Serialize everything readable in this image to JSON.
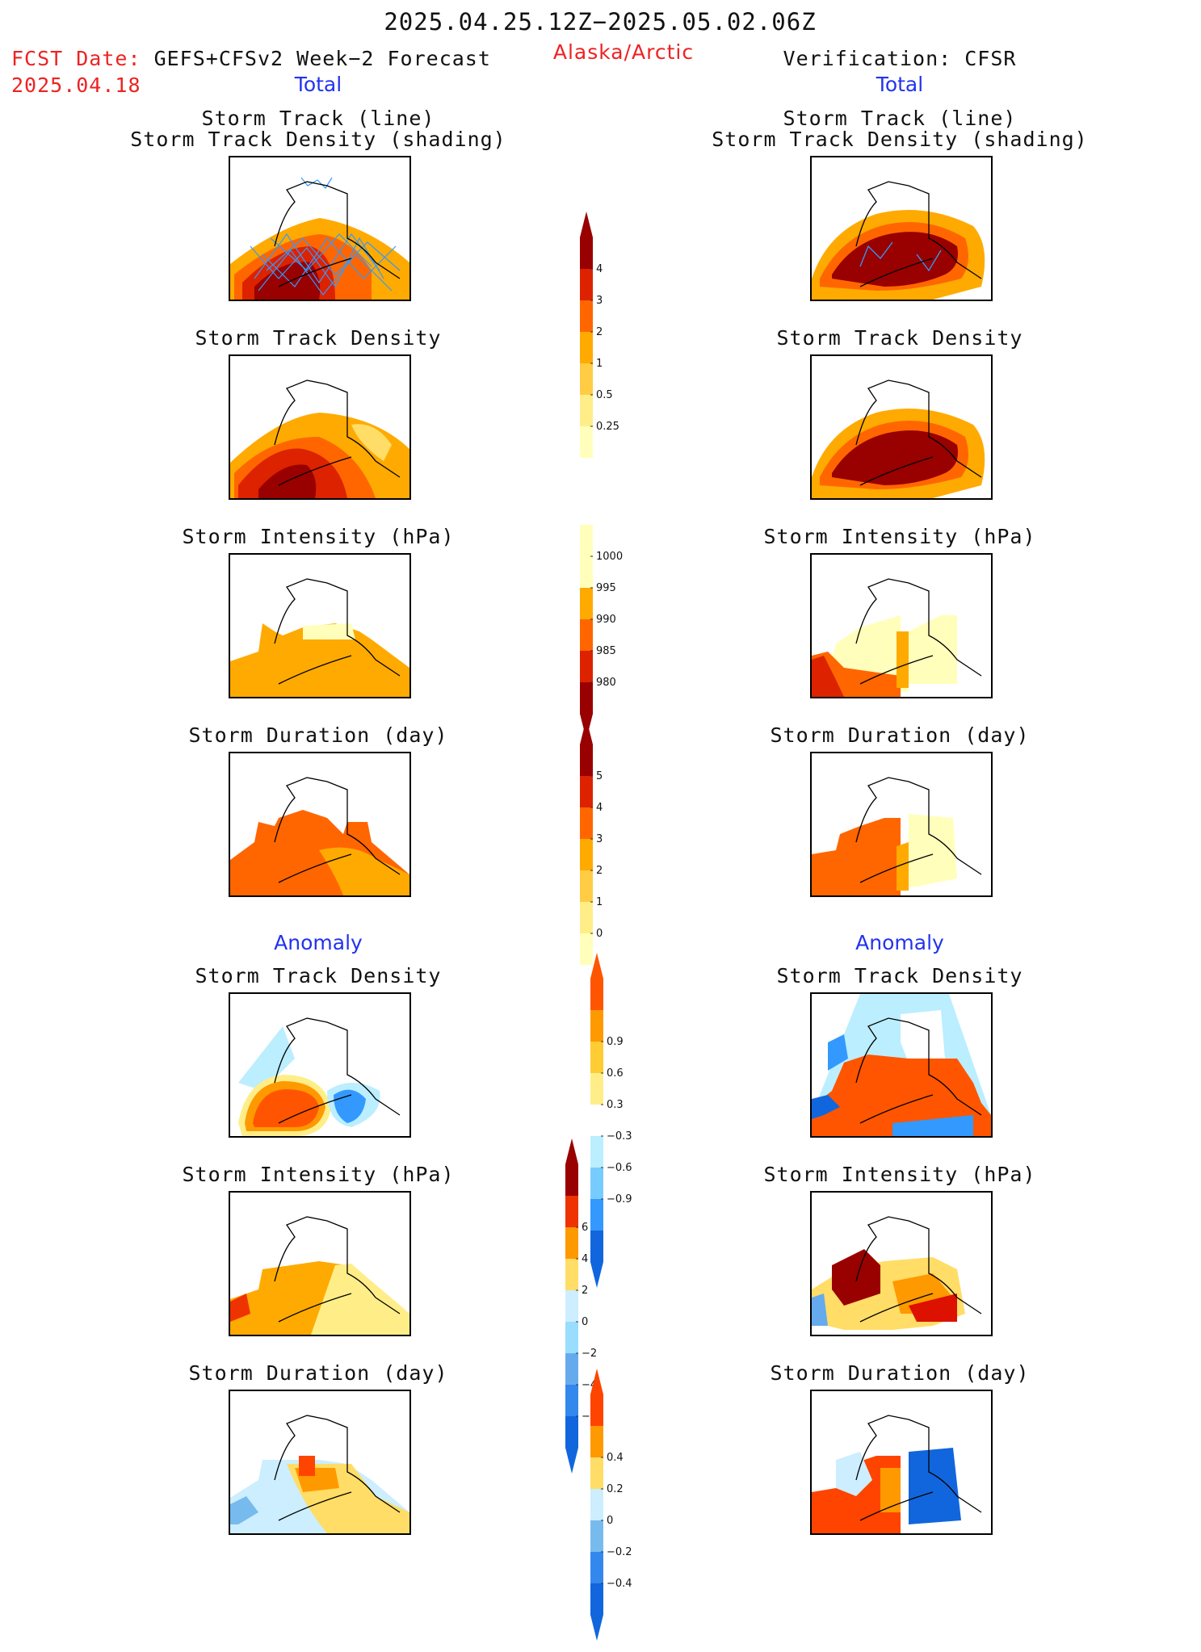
{
  "header": {
    "period": "2025.04.25.12Z−2025.05.02.06Z",
    "region": "Alaska/Arctic",
    "fcst_label": "FCST Date:",
    "fcst_model": "GEFS+CFSv2 Week−2 Forecast",
    "fcst_date": "2025.04.18",
    "verification": "Verification: CFSR",
    "total_left": "Total",
    "total_right": "Total",
    "anomaly_left": "Anomaly",
    "anomaly_right": "Anomaly"
  },
  "panel_titles": {
    "track_line": "Storm Track (line)",
    "track_shading": "Storm Track Density (shading)",
    "density": "Storm Track Density",
    "intensity": "Storm Intensity (hPa)",
    "duration": "Storm Duration (day)"
  },
  "colors": {
    "density_scale": [
      "#ffffaa",
      "#ffdd66",
      "#ffaa00",
      "#ff6600",
      "#dd2200",
      "#990000"
    ],
    "intensity_scale": [
      "#ffffaa",
      "#ffaa00",
      "#ff6600",
      "#dd2200",
      "#990000"
    ],
    "anomaly_warm": [
      "#ffee88",
      "#ffaa00",
      "#ff5500",
      "#dd1100",
      "#990000"
    ],
    "anomaly_cold": [
      "#bbeeff",
      "#77ccff",
      "#3399ff",
      "#1166dd"
    ],
    "track_line": "#3399ff"
  },
  "chart_data": [
    {
      "type": "heatmap",
      "title": "Storm Track (line) / Storm Track Density (shading)",
      "column": "GEFS+CFSv2 Week-2 Forecast",
      "section": "Total",
      "scale_ticks": [
        4,
        3,
        2,
        1,
        0.5,
        0.25
      ],
      "max_class": 5
    },
    {
      "type": "heatmap",
      "title": "Storm Track (line) / Storm Track Density (shading)",
      "column": "Verification: CFSR",
      "section": "Total",
      "scale_ticks": [
        4,
        3,
        2,
        1,
        0.5,
        0.25
      ],
      "max_class": 5
    },
    {
      "type": "heatmap",
      "title": "Storm Track Density",
      "column": "GEFS+CFSv2 Week-2 Forecast",
      "section": "Total",
      "scale_ticks": [
        4,
        3,
        2,
        1,
        0.5,
        0.25
      ]
    },
    {
      "type": "heatmap",
      "title": "Storm Track Density",
      "column": "Verification: CFSR",
      "section": "Total",
      "scale_ticks": [
        4,
        3,
        2,
        1,
        0.5,
        0.25
      ]
    },
    {
      "type": "heatmap",
      "title": "Storm Intensity (hPa)",
      "column": "GEFS+CFSv2 Week-2 Forecast",
      "section": "Total",
      "scale_ticks": [
        1000,
        995,
        990,
        985,
        980
      ]
    },
    {
      "type": "heatmap",
      "title": "Storm Intensity (hPa)",
      "column": "Verification: CFSR",
      "section": "Total",
      "scale_ticks": [
        1000,
        995,
        990,
        985,
        980
      ]
    },
    {
      "type": "heatmap",
      "title": "Storm Duration (day)",
      "column": "GEFS+CFSv2 Week-2 Forecast",
      "section": "Total",
      "scale_ticks": [
        5,
        4,
        3,
        2,
        1,
        0
      ]
    },
    {
      "type": "heatmap",
      "title": "Storm Duration (day)",
      "column": "Verification: CFSR",
      "section": "Total",
      "scale_ticks": [
        5,
        4,
        3,
        2,
        1,
        0
      ]
    },
    {
      "type": "heatmap",
      "title": "Storm Track Density",
      "column": "GEFS+CFSv2 Week-2 Forecast",
      "section": "Anomaly",
      "scale_ticks": [
        0.9,
        0.6,
        0.3,
        -0.3,
        -0.6,
        -0.9
      ]
    },
    {
      "type": "heatmap",
      "title": "Storm Track Density",
      "column": "Verification: CFSR",
      "section": "Anomaly",
      "scale_ticks": [
        0.9,
        0.6,
        0.3,
        -0.3,
        -0.6,
        -0.9
      ]
    },
    {
      "type": "heatmap",
      "title": "Storm Intensity (hPa)",
      "column": "GEFS+CFSv2 Week-2 Forecast",
      "section": "Anomaly",
      "scale_ticks": [
        6,
        4,
        2,
        0,
        -2,
        -4,
        -6
      ]
    },
    {
      "type": "heatmap",
      "title": "Storm Intensity (hPa)",
      "column": "Verification: CFSR",
      "section": "Anomaly",
      "scale_ticks": [
        6,
        4,
        2,
        0,
        -2,
        -4,
        -6
      ]
    },
    {
      "type": "heatmap",
      "title": "Storm Duration (day)",
      "column": "GEFS+CFSv2 Week-2 Forecast",
      "section": "Anomaly",
      "scale_ticks": [
        0.4,
        0.2,
        0,
        -0.2,
        -0.4
      ]
    },
    {
      "type": "heatmap",
      "title": "Storm Duration (day)",
      "column": "Verification: CFSR",
      "section": "Anomaly",
      "scale_ticks": [
        0.4,
        0.2,
        0,
        -0.2,
        -0.4
      ]
    }
  ],
  "colorbars": [
    {
      "id": "density",
      "ticks": [
        "4",
        "3",
        "2",
        "1",
        "0.5",
        "0.25"
      ],
      "colors": [
        "#990000",
        "#dd2200",
        "#ff6600",
        "#ffaa00",
        "#ffcc44",
        "#ffee88",
        "#ffffbb"
      ],
      "cap_top": true,
      "cap_bottom": false
    },
    {
      "id": "intensity",
      "ticks": [
        "1000",
        "995",
        "990",
        "985",
        "980"
      ],
      "colors": [
        "#ffffbb",
        "#ffffbb",
        "#ffaa00",
        "#ff6600",
        "#dd2200",
        "#990000"
      ],
      "cap_top": false,
      "cap_bottom": true
    },
    {
      "id": "duration",
      "ticks": [
        "5",
        "4",
        "3",
        "2",
        "1",
        "0"
      ],
      "colors": [
        "#990000",
        "#dd2200",
        "#ff6600",
        "#ffaa00",
        "#ffcc44",
        "#ffee88",
        "#ffffbb"
      ],
      "cap_top": true,
      "cap_bottom": false
    },
    {
      "id": "anom-density",
      "ticks": [
        "0.9",
        "0.6",
        "0.3",
        "−0.3",
        "−0.6",
        "−0.9"
      ],
      "colors": [
        "#ff5500",
        "#ff9900",
        "#ffcc33",
        "#ffee88",
        "#ffffff",
        "#bbeeff",
        "#77ccff",
        "#3399ff",
        "#1166dd"
      ],
      "cap_top": true,
      "cap_bottom": true
    },
    {
      "id": "anom-intensity",
      "ticks": [
        "6",
        "4",
        "2",
        "0",
        "−2",
        "−4",
        "−6"
      ],
      "colors": [
        "#990000",
        "#ee3300",
        "#ff9900",
        "#ffdd66",
        "#cceeff",
        "#99ddff",
        "#66aaee",
        "#3388ee",
        "#1166dd"
      ],
      "cap_top": true,
      "cap_bottom": true
    },
    {
      "id": "anom-duration",
      "ticks": [
        "0.4",
        "0.2",
        "0",
        "−0.2",
        "−0.4"
      ],
      "colors": [
        "#ff4400",
        "#ff9900",
        "#ffdd66",
        "#cceeff",
        "#77bbee",
        "#3388ee",
        "#1166dd"
      ],
      "cap_top": true,
      "cap_bottom": true
    }
  ]
}
